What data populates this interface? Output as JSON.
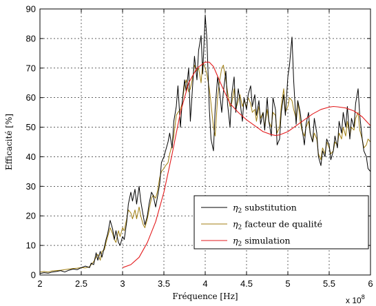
{
  "chart_data": {
    "type": "line",
    "xlabel": "Fréquence [Hz]",
    "ylabel": "Efficacité [%]",
    "x_multiplier_label": "x 10",
    "x_multiplier_exponent": "8",
    "xlim": [
      2,
      6
    ],
    "ylim": [
      0,
      90
    ],
    "xticks": [
      "2",
      "2.5",
      "3",
      "3.5",
      "4",
      "4.5",
      "5",
      "5.5",
      "6"
    ],
    "yticks": [
      "0",
      "10",
      "20",
      "30",
      "40",
      "50",
      "60",
      "70",
      "80",
      "90"
    ],
    "grid": "dashed",
    "legend_position": "bottom-right",
    "series": [
      {
        "name": "η2 substitution",
        "legend_sym": "η",
        "legend_sub": "2",
        "legend_rest": " substitution",
        "color": "#000000",
        "x": [
          2.0,
          2.05,
          2.1,
          2.15,
          2.2,
          2.25,
          2.3,
          2.35,
          2.4,
          2.45,
          2.5,
          2.55,
          2.6,
          2.62,
          2.65,
          2.68,
          2.7,
          2.73,
          2.75,
          2.78,
          2.8,
          2.82,
          2.85,
          2.88,
          2.9,
          2.92,
          2.95,
          2.97,
          3.0,
          3.02,
          3.05,
          3.07,
          3.1,
          3.12,
          3.15,
          3.17,
          3.2,
          3.22,
          3.25,
          3.27,
          3.3,
          3.32,
          3.35,
          3.37,
          3.4,
          3.42,
          3.45,
          3.47,
          3.5,
          3.52,
          3.55,
          3.57,
          3.6,
          3.62,
          3.65,
          3.67,
          3.7,
          3.72,
          3.75,
          3.77,
          3.8,
          3.82,
          3.85,
          3.87,
          3.9,
          3.92,
          3.95,
          3.97,
          4.0,
          4.02,
          4.05,
          4.07,
          4.1,
          4.12,
          4.15,
          4.17,
          4.2,
          4.22,
          4.25,
          4.27,
          4.3,
          4.32,
          4.35,
          4.37,
          4.4,
          4.42,
          4.45,
          4.47,
          4.5,
          4.52,
          4.55,
          4.57,
          4.6,
          4.62,
          4.65,
          4.67,
          4.7,
          4.72,
          4.75,
          4.77,
          4.8,
          4.82,
          4.85,
          4.87,
          4.9,
          4.92,
          4.95,
          4.97,
          5.0,
          5.02,
          5.05,
          5.07,
          5.1,
          5.12,
          5.15,
          5.17,
          5.2,
          5.22,
          5.25,
          5.27,
          5.3,
          5.32,
          5.35,
          5.37,
          5.4,
          5.42,
          5.45,
          5.47,
          5.5,
          5.52,
          5.55,
          5.57,
          5.6,
          5.62,
          5.65,
          5.67,
          5.7,
          5.72,
          5.75,
          5.77,
          5.8,
          5.82,
          5.85,
          5.87,
          5.9,
          5.92,
          5.95,
          5.97,
          6.0
        ],
        "y": [
          0.5,
          0.8,
          0.6,
          1.0,
          1.2,
          1.5,
          1.0,
          1.6,
          2.0,
          1.8,
          2.5,
          3.0,
          2.5,
          4.0,
          3.5,
          7.5,
          5.0,
          8.0,
          6.0,
          9.5,
          12.0,
          14.0,
          18.5,
          15.5,
          12.0,
          15.0,
          11.0,
          10.0,
          13.0,
          12.0,
          18.0,
          24.0,
          28.0,
          25.0,
          29.0,
          24.0,
          30.0,
          25.0,
          20.0,
          17.0,
          20.0,
          24.0,
          28.0,
          27.0,
          23.0,
          26.0,
          31.0,
          38.0,
          40.0,
          42.0,
          45.0,
          48.0,
          43.0,
          52.0,
          57.0,
          64.0,
          50.0,
          58.0,
          66.0,
          62.0,
          70.0,
          52.0,
          65.0,
          74.0,
          66.0,
          76.0,
          81.0,
          68.0,
          88.0,
          80.0,
          56.0,
          46.0,
          42.0,
          56.0,
          67.0,
          63.0,
          55.0,
          62.0,
          69.0,
          58.0,
          50.0,
          61.0,
          67.0,
          55.0,
          63.0,
          59.0,
          52.0,
          60.0,
          56.0,
          61.0,
          64.0,
          57.0,
          61.0,
          54.0,
          59.0,
          51.0,
          55.0,
          49.0,
          60.0,
          52.0,
          47.0,
          60.0,
          56.0,
          44.0,
          46.0,
          55.0,
          61.0,
          54.0,
          67.0,
          71.0,
          80.5,
          66.0,
          51.0,
          59.0,
          55.0,
          50.0,
          44.0,
          51.0,
          55.0,
          48.0,
          45.0,
          53.0,
          48.0,
          40.0,
          37.0,
          42.0,
          40.0,
          46.0,
          44.0,
          39.0,
          42.0,
          47.0,
          43.0,
          52.0,
          48.0,
          55.0,
          50.0,
          57.0,
          46.0,
          53.0,
          50.0,
          58.0,
          63.0,
          54.0,
          46.0,
          42.0,
          40.0,
          36.0,
          35.0
        ]
      },
      {
        "name": "η2 facteur de qualité",
        "legend_sym": "η",
        "legend_sub": "2",
        "legend_rest": " facteur de qualité",
        "color": "#a07e10",
        "x": [
          2.0,
          2.05,
          2.1,
          2.15,
          2.2,
          2.25,
          2.3,
          2.35,
          2.4,
          2.45,
          2.5,
          2.55,
          2.6,
          2.62,
          2.65,
          2.68,
          2.7,
          2.73,
          2.75,
          2.78,
          2.8,
          2.82,
          2.85,
          2.88,
          2.9,
          2.92,
          2.95,
          2.97,
          3.0,
          3.02,
          3.05,
          3.07,
          3.1,
          3.12,
          3.15,
          3.17,
          3.2,
          3.22,
          3.25,
          3.27,
          3.3,
          3.32,
          3.35,
          3.37,
          3.4,
          3.42,
          3.45,
          3.47,
          3.5,
          3.52,
          3.55,
          3.57,
          3.6,
          3.62,
          3.65,
          3.67,
          3.7,
          3.72,
          3.75,
          3.77,
          3.8,
          3.82,
          3.85,
          3.87,
          3.9,
          3.92,
          3.95,
          3.97,
          4.0,
          4.02,
          4.05,
          4.07,
          4.1,
          4.12,
          4.15,
          4.17,
          4.2,
          4.22,
          4.25,
          4.27,
          4.3,
          4.32,
          4.35,
          4.37,
          4.4,
          4.42,
          4.45,
          4.47,
          4.5,
          4.52,
          4.55,
          4.57,
          4.6,
          4.62,
          4.65,
          4.67,
          4.7,
          4.72,
          4.75,
          4.77,
          4.8,
          4.82,
          4.85,
          4.87,
          4.9,
          4.92,
          4.95,
          4.97,
          5.0,
          5.02,
          5.05,
          5.07,
          5.1,
          5.12,
          5.15,
          5.17,
          5.2,
          5.22,
          5.25,
          5.27,
          5.3,
          5.32,
          5.35,
          5.37,
          5.4,
          5.42,
          5.45,
          5.47,
          5.5,
          5.52,
          5.55,
          5.57,
          5.6,
          5.62,
          5.65,
          5.67,
          5.7,
          5.72,
          5.75,
          5.77,
          5.8,
          5.82,
          5.85,
          5.87,
          5.9,
          5.92,
          5.95,
          5.97,
          6.0
        ],
        "y": [
          1.0,
          1.2,
          1.0,
          1.4,
          1.5,
          1.6,
          1.8,
          2.0,
          2.2,
          2.3,
          2.5,
          2.4,
          2.8,
          3.5,
          4.5,
          6.0,
          7.0,
          5.0,
          8.0,
          8.5,
          11.0,
          13.0,
          16.0,
          14.0,
          12.0,
          11.0,
          15.0,
          13.0,
          16.0,
          15.0,
          19.0,
          22.0,
          21.0,
          19.0,
          22.0,
          19.0,
          23.0,
          20.0,
          17.0,
          16.0,
          19.0,
          22.0,
          26.0,
          27.0,
          26.0,
          28.0,
          33.0,
          35.0,
          36.0,
          37.0,
          38.0,
          41.0,
          44.0,
          47.0,
          54.0,
          55.0,
          56.0,
          58.0,
          64.0,
          66.0,
          62.0,
          63.0,
          67.0,
          71.0,
          69.0,
          70.0,
          65.0,
          72.0,
          70.0,
          68.0,
          63.0,
          58.0,
          50.0,
          47.0,
          60.0,
          65.0,
          70.0,
          71.0,
          66.0,
          62.0,
          57.0,
          58.0,
          63.0,
          56.0,
          59.0,
          61.0,
          57.0,
          59.0,
          57.0,
          60.0,
          58.0,
          55.0,
          56.0,
          52.0,
          57.0,
          53.0,
          55.0,
          50.0,
          56.0,
          52.0,
          50.0,
          55.0,
          54.0,
          48.0,
          50.0,
          57.0,
          63.0,
          55.0,
          57.0,
          60.0,
          59.0,
          56.0,
          53.0,
          59.0,
          52.0,
          49.0,
          47.0,
          50.0,
          52.0,
          48.0,
          45.0,
          48.0,
          46.0,
          41.0,
          39.0,
          43.0,
          41.0,
          45.0,
          43.0,
          41.0,
          42.0,
          45.0,
          44.0,
          48.0,
          46.0,
          50.0,
          47.0,
          52.0,
          47.0,
          50.0,
          49.0,
          53.0,
          55.0,
          49.0,
          46.0,
          43.0,
          44.0,
          46.0,
          45.0
        ]
      },
      {
        "name": "η2 simulation",
        "legend_sym": "η",
        "legend_sub": "2",
        "legend_rest": " simulation",
        "color": "#e31a1c",
        "x": [
          3.0,
          3.1,
          3.2,
          3.3,
          3.4,
          3.5,
          3.6,
          3.7,
          3.8,
          3.9,
          4.0,
          4.05,
          4.1,
          4.2,
          4.3,
          4.4,
          4.5,
          4.6,
          4.7,
          4.8,
          4.85,
          4.9,
          5.0,
          5.1,
          5.2,
          5.3,
          5.4,
          5.5,
          5.55,
          5.6,
          5.7,
          5.8,
          5.9,
          6.0
        ],
        "y": [
          2.5,
          3.5,
          6.0,
          11.0,
          18.0,
          28.0,
          41.0,
          55.0,
          65.0,
          70.0,
          72.0,
          72.0,
          70.5,
          64.0,
          58.0,
          55.0,
          52.5,
          50.5,
          48.5,
          47.5,
          47.2,
          47.4,
          48.5,
          50.5,
          52.5,
          54.5,
          56.0,
          56.8,
          57.0,
          56.9,
          56.5,
          55.5,
          53.5,
          50.5
        ]
      }
    ]
  }
}
